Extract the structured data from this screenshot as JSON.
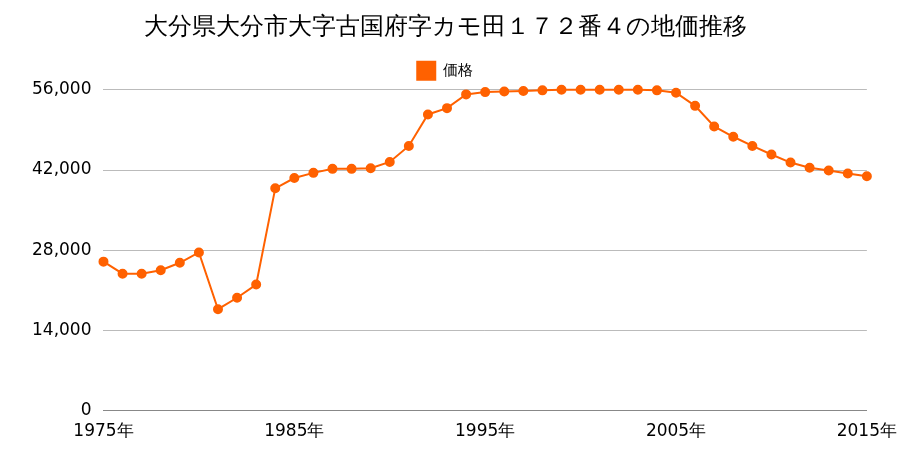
{
  "chart_data": {
    "type": "line",
    "title": "大分県大分市大字古国府字カモ田１７２番４の地価推移",
    "categories": [
      "1975年",
      null,
      null,
      null,
      null,
      null,
      null,
      null,
      null,
      null,
      "1985年",
      null,
      null,
      null,
      null,
      null,
      null,
      null,
      null,
      null,
      "1995年",
      null,
      null,
      null,
      null,
      null,
      null,
      null,
      null,
      null,
      "2005年",
      null,
      null,
      null,
      null,
      null,
      null,
      null,
      null,
      null,
      "2015年"
    ],
    "series": [
      {
        "name": "価格",
        "color": "#ff6100",
        "marker": "circle",
        "values": [
          26000,
          23900,
          23900,
          24500,
          25800,
          27600,
          17700,
          19700,
          22000,
          38800,
          40600,
          41500,
          42200,
          42200,
          42300,
          43400,
          46200,
          51700,
          52800,
          55200,
          55600,
          55700,
          55800,
          55900,
          56000,
          56000,
          56000,
          56000,
          56000,
          55900,
          55500,
          53200,
          49600,
          47800,
          46200,
          44700,
          43300,
          42400,
          41900,
          41400,
          40900
        ]
      }
    ],
    "ylim": [
      0,
      56000
    ],
    "yticks": [
      0,
      {
        "value": 14000,
        "label": "14,000"
      },
      {
        "value": 28000,
        "label": "28,000"
      },
      {
        "value": 42000,
        "label": "42,000"
      },
      {
        "value": 56000,
        "label": "56,000"
      }
    ],
    "grid": true,
    "legend": "top"
  }
}
